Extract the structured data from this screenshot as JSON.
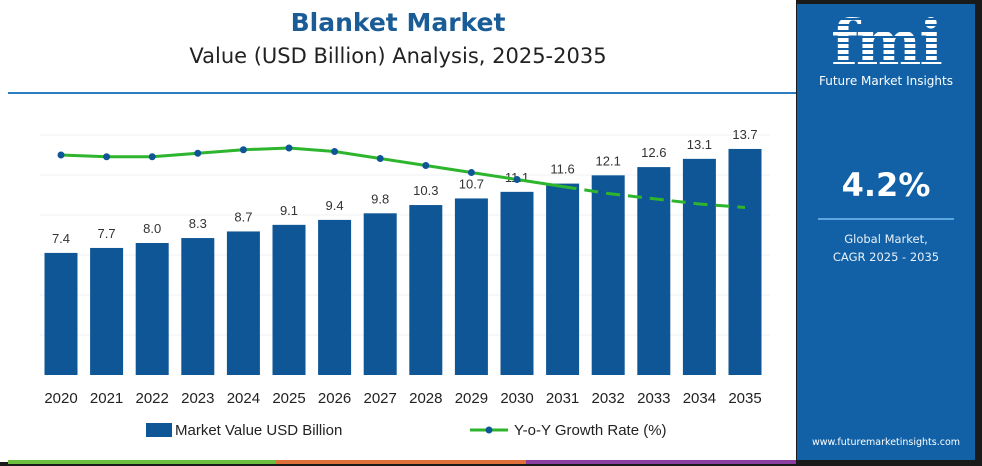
{
  "header": {
    "title": "Blanket Market",
    "subtitle": "Value (USD Billion) Analysis, 2025-2035"
  },
  "sidebar": {
    "logo_text": "fmi",
    "brand": "Future Market Insights",
    "cagr": "4.2%",
    "desc_line1": "Global Market,",
    "desc_line2": "CAGR 2025 - 2035",
    "url": "www.futuremarketinsights.com"
  },
  "colors": {
    "bar": "#0f5696",
    "line": "#2db52d",
    "marker": "#0f5696",
    "panel": "#1261a7",
    "strip": [
      "#6cbf3c",
      "#e0703a",
      "#8a3fa0"
    ]
  },
  "chart_data": {
    "type": "bar",
    "title": "Blanket Market",
    "categories": [
      "2020",
      "2021",
      "2022",
      "2023",
      "2024",
      "2025",
      "2026",
      "2027",
      "2028",
      "2029",
      "2030",
      "2031",
      "2032",
      "2033",
      "2034",
      "2035"
    ],
    "series": [
      {
        "name": "Market Value USD Billion",
        "type": "bar",
        "values": [
          7.4,
          7.7,
          8.0,
          8.3,
          8.7,
          9.1,
          9.4,
          9.8,
          10.3,
          10.7,
          11.1,
          11.6,
          12.1,
          12.6,
          13.1,
          13.7
        ]
      },
      {
        "name": "Y-o-Y Growth Rate (%)",
        "type": "line",
        "values": [
          4.0,
          3.9,
          3.9,
          4.1,
          4.3,
          4.4,
          4.2,
          3.8,
          3.4,
          3.0,
          2.6,
          2.2,
          1.8,
          1.5,
          1.2,
          1.0
        ],
        "dashed_from": "2031"
      }
    ],
    "data_labels": [
      "7.4",
      "7.7",
      "8.0",
      "8.3",
      "8.7",
      "9.1",
      "9.4",
      "9.8",
      "10.3",
      "10.7",
      "11.1",
      "11.6",
      "12.1",
      "12.6",
      "13.1",
      "13.7"
    ],
    "grid": true,
    "legend": "bottom"
  }
}
